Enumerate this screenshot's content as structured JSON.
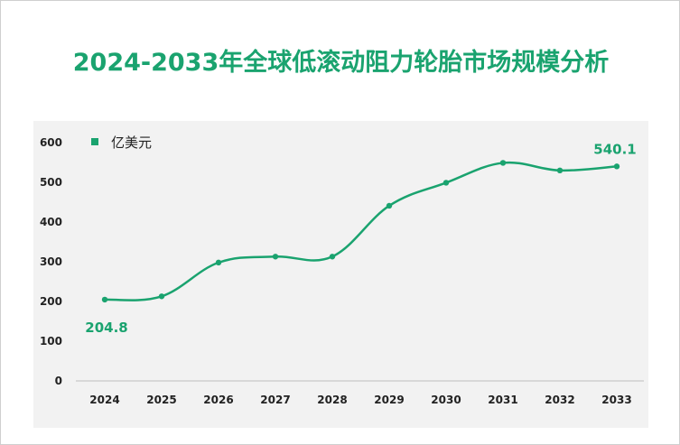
{
  "title": "2024-2033年全球低滚动阻力轮胎市场规模分析",
  "colors": {
    "accent": "#1aa36f",
    "plot_bg": "#f2f2f2"
  },
  "chart_data": {
    "type": "line",
    "categories": [
      "2024",
      "2025",
      "2026",
      "2027",
      "2028",
      "2029",
      "2030",
      "2031",
      "2032",
      "2033"
    ],
    "series": [
      {
        "name": "亿美元",
        "values": [
          204.8,
          213,
          298,
          313,
          313,
          441,
          499,
          549,
          530,
          540.1
        ]
      }
    ],
    "data_labels": [
      "204.8",
      "540.1"
    ],
    "y_ticks": [
      "0",
      "100",
      "200",
      "300",
      "400",
      "500",
      "600"
    ],
    "ylim": [
      0,
      600
    ],
    "legend_position": "top-left",
    "smooth": true,
    "grid": false
  }
}
